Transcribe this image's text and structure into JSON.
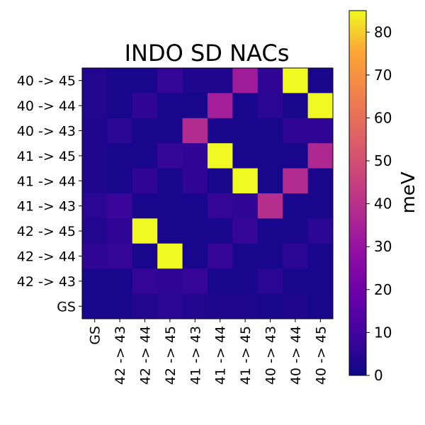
{
  "chart_data": {
    "type": "heatmap",
    "title": "INDO SD NACs",
    "colorbar_label": "meV",
    "colormap": "plasma",
    "x_categories": [
      "GS",
      "42 -> 43",
      "42 -> 44",
      "42 -> 45",
      "41 -> 43",
      "41 -> 44",
      "41 -> 45",
      "40 -> 43",
      "40 -> 44",
      "40 -> 45"
    ],
    "y_categories_top_to_bottom": [
      "40 -> 45",
      "40 -> 44",
      "40 -> 43",
      "41 -> 45",
      "41 -> 44",
      "41 -> 43",
      "42 -> 45",
      "42 -> 44",
      "42 -> 43",
      "GS"
    ],
    "values_top_to_bottom": [
      [
        4,
        2,
        2,
        7,
        3,
        3,
        33,
        6,
        85,
        2
      ],
      [
        4,
        2,
        6,
        2,
        2,
        34,
        2,
        5,
        2,
        85
      ],
      [
        3,
        5,
        2,
        2,
        38,
        2,
        2,
        2,
        6,
        6
      ],
      [
        3,
        2,
        2,
        7,
        6,
        85,
        2,
        2,
        2,
        37
      ],
      [
        3,
        2,
        6,
        2,
        6,
        2,
        85,
        2,
        38,
        2
      ],
      [
        5,
        8,
        2,
        2,
        2,
        7,
        6,
        39,
        2,
        2
      ],
      [
        4,
        6,
        85,
        2,
        2,
        2,
        7,
        2,
        2,
        5
      ],
      [
        6,
        7,
        2,
        85,
        2,
        7,
        2,
        2,
        5,
        2
      ],
      [
        2,
        2,
        7,
        6,
        7,
        2,
        2,
        5,
        2,
        2
      ],
      [
        2,
        2,
        4,
        5,
        4,
        3,
        3,
        2,
        3,
        2
      ]
    ],
    "colorbar_range": [
      0,
      85
    ],
    "colorbar_ticks": [
      0,
      10,
      20,
      30,
      40,
      50,
      60,
      70,
      80
    ]
  }
}
